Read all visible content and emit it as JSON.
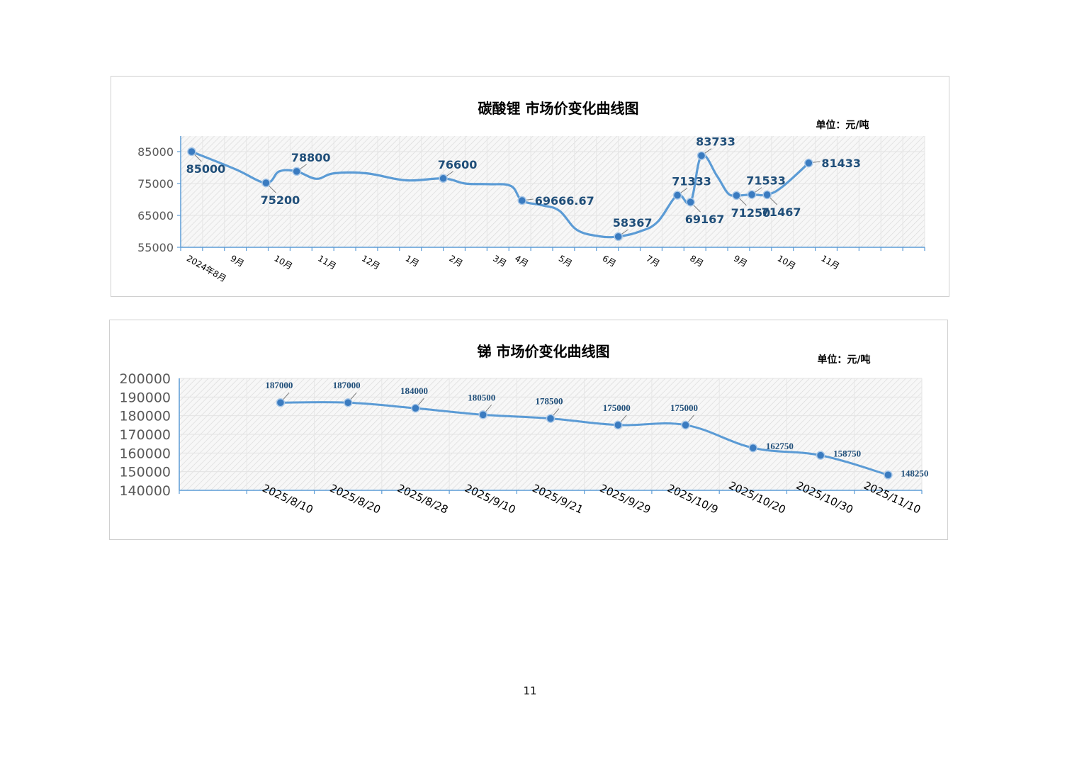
{
  "page_number": "11",
  "colors": {
    "line": "#5b9bd5",
    "marker": "#3a7bc0",
    "label": "#1f4e79",
    "axis": "#5b9bd5"
  },
  "chart_data": [
    {
      "type": "line",
      "title": "碳酸锂 市场价变化曲线图",
      "unit_label": "单位：元/吨",
      "xlabel": "",
      "ylabel": "",
      "ylim": [
        55000,
        85000
      ],
      "yticks": [
        "85000",
        "75000",
        "65000",
        "55000"
      ],
      "tick_count": 34,
      "xticklabels": [
        {
          "label": "2024年8月",
          "tick": 1
        },
        {
          "label": "9月",
          "tick": 3
        },
        {
          "label": "10月",
          "tick": 5
        },
        {
          "label": "11月",
          "tick": 7
        },
        {
          "label": "12月",
          "tick": 9
        },
        {
          "label": "1月",
          "tick": 11
        },
        {
          "label": "2月",
          "tick": 13
        },
        {
          "label": "3月",
          "tick": 15
        },
        {
          "label": "4月",
          "tick": 16
        },
        {
          "label": "5月",
          "tick": 18
        },
        {
          "label": "6月",
          "tick": 20
        },
        {
          "label": "7月",
          "tick": 22
        },
        {
          "label": "8月",
          "tick": 24
        },
        {
          "label": "9月",
          "tick": 26
        },
        {
          "label": "10月",
          "tick": 28
        },
        {
          "label": "11月",
          "tick": 30
        }
      ],
      "series": [
        {
          "points": [
            {
              "x": 1.0,
              "y": 85000,
              "marker": true,
              "label": "85000",
              "lpos": "below"
            },
            {
              "x": 3.0,
              "y": 79500
            },
            {
              "x": 4.4,
              "y": 75200,
              "marker": true,
              "label": "75200",
              "lpos": "below"
            },
            {
              "x": 5.0,
              "y": 78800
            },
            {
              "x": 5.8,
              "y": 78800,
              "marker": true,
              "label": "78800",
              "lpos": "above"
            },
            {
              "x": 6.7,
              "y": 76500
            },
            {
              "x": 7.5,
              "y": 78200
            },
            {
              "x": 9.0,
              "y": 78200
            },
            {
              "x": 10.8,
              "y": 76000
            },
            {
              "x": 12.5,
              "y": 76600,
              "marker": true,
              "label": "76600",
              "lpos": "above"
            },
            {
              "x": 13.5,
              "y": 75000
            },
            {
              "x": 14.6,
              "y": 74800
            },
            {
              "x": 15.6,
              "y": 74200
            },
            {
              "x": 16.1,
              "y": 69666.67,
              "marker": true,
              "label": "69666.67",
              "lpos": "right"
            },
            {
              "x": 17.0,
              "y": 68200
            },
            {
              "x": 17.8,
              "y": 66500
            },
            {
              "x": 18.6,
              "y": 60500
            },
            {
              "x": 19.6,
              "y": 58500
            },
            {
              "x": 20.5,
              "y": 58367,
              "marker": true,
              "label": "58367",
              "lpos": "above"
            },
            {
              "x": 21.5,
              "y": 60000
            },
            {
              "x": 22.3,
              "y": 63000
            },
            {
              "x": 23.2,
              "y": 71333,
              "marker": true,
              "label": "71333",
              "lpos": "above"
            },
            {
              "x": 23.8,
              "y": 69167,
              "marker": true,
              "label": "69167",
              "lpos": "below"
            },
            {
              "x": 24.3,
              "y": 83733,
              "marker": true,
              "label": "83733",
              "lpos": "above"
            },
            {
              "x": 25.0,
              "y": 77500
            },
            {
              "x": 25.5,
              "y": 72000
            },
            {
              "x": 25.9,
              "y": 71250,
              "marker": true,
              "label": "71250",
              "lpos": "below"
            },
            {
              "x": 26.6,
              "y": 71533,
              "marker": true,
              "label": "71533",
              "lpos": "above"
            },
            {
              "x": 27.3,
              "y": 71467,
              "marker": true,
              "label": "71467",
              "lpos": "below"
            },
            {
              "x": 28.0,
              "y": 74000
            },
            {
              "x": 29.2,
              "y": 81433,
              "marker": true,
              "label": "81433",
              "lpos": "right"
            }
          ]
        }
      ]
    },
    {
      "type": "line",
      "title": "锑  市场价变化曲线图",
      "unit_label": "单位：元/吨",
      "xlabel": "",
      "ylabel": "",
      "ylim": [
        140000,
        200000
      ],
      "yticks": [
        "200000",
        "190000",
        "180000",
        "170000",
        "160000",
        "150000",
        "140000"
      ],
      "categories": [
        "2025/8/10",
        "2025/8/20",
        "2025/8/28",
        "2025/9/10",
        "2025/9/21",
        "2025/9/29",
        "2025/10/9",
        "2025/10/20",
        "2025/10/30",
        "2025/11/10"
      ],
      "series": [
        {
          "values": [
            187000,
            187000,
            184000,
            180500,
            178500,
            175000,
            175000,
            162750,
            158750,
            148250
          ],
          "labels": [
            "187000",
            "187000",
            "184000",
            "180500",
            "178500",
            "175000",
            "175000",
            "162750",
            "158750",
            "148250"
          ]
        }
      ]
    }
  ]
}
